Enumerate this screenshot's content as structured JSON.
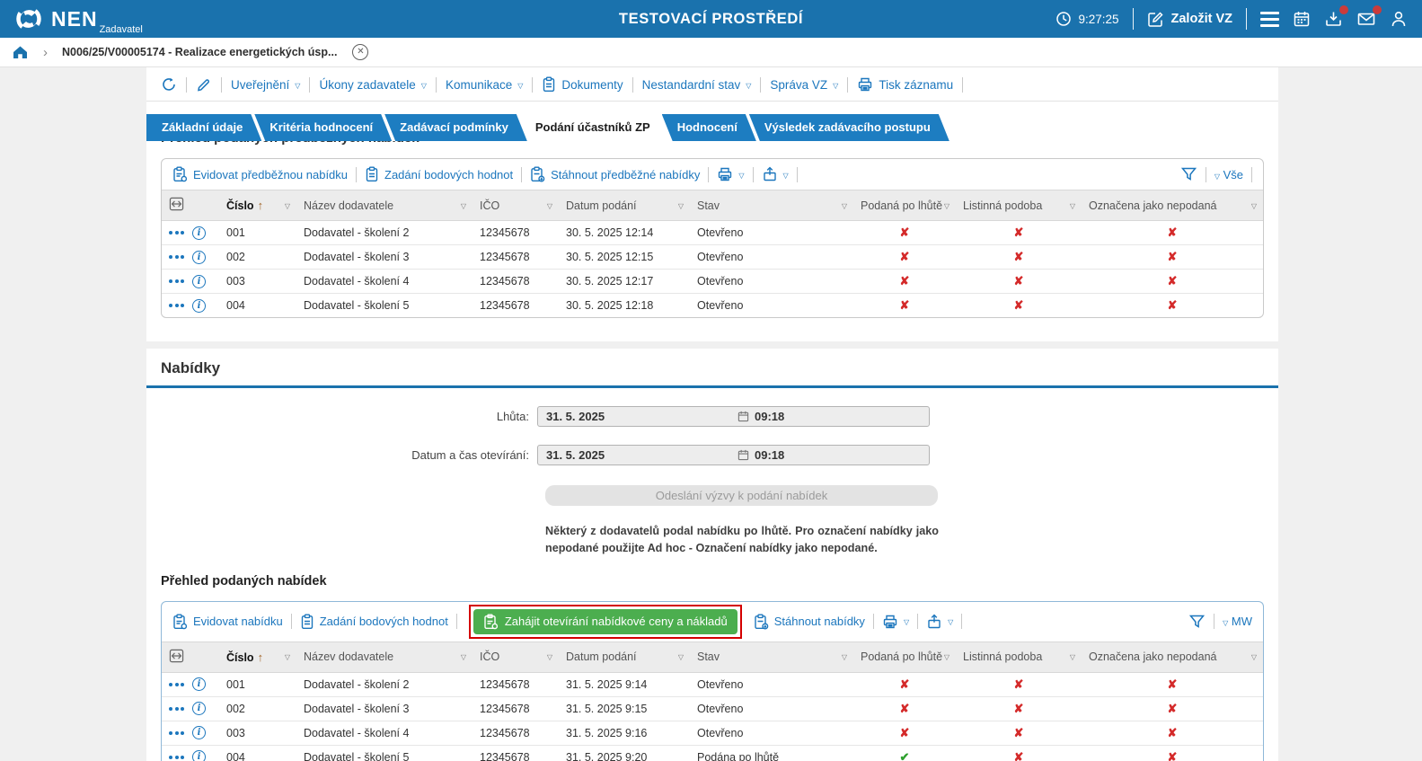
{
  "header": {
    "brand": "NEN",
    "brand_sub": "Zadavatel",
    "title": "TESTOVACÍ PROSTŘEDÍ",
    "time": "9:27:25",
    "create_button": "Založit VZ"
  },
  "breadcrumb": {
    "record": "N006/25/V00005174 - Realizace energetických úsp..."
  },
  "record_toolbar": {
    "uverejneni": "Uveřejnění",
    "ukony": "Úkony zadavatele",
    "komunikace": "Komunikace",
    "dokumenty": "Dokumenty",
    "nestandardni": "Nestandardní stav",
    "sprava": "Správa VZ",
    "tisk": "Tisk záznamu"
  },
  "tabs": [
    {
      "label": "Základní údaje",
      "active": false
    },
    {
      "label": "Kritéria hodnocení",
      "active": false
    },
    {
      "label": "Zadávací podmínky",
      "active": false
    },
    {
      "label": "Podání účastníků ZP",
      "active": true
    },
    {
      "label": "Hodnocení",
      "active": false
    },
    {
      "label": "Výsledek zadávacího postupu",
      "active": false
    }
  ],
  "section1": {
    "heading": "Přehled podaných předběžných nabídek",
    "toolbar": {
      "evidovat": "Evidovat předběžnou nabídku",
      "zadani": "Zadání bodových hodnot",
      "stahnout": "Stáhnout předběžné nabídky",
      "filter": "Vše"
    },
    "table": {
      "columns": [
        "Číslo",
        "Název dodavatele",
        "IČO",
        "Datum podání",
        "Stav",
        "Podaná po lhůtě",
        "Listinná podoba",
        "Označena jako nepodaná"
      ],
      "rows": [
        {
          "cislo": "001",
          "nazev": "Dodavatel - školení 2",
          "ico": "12345678",
          "datum": "30. 5. 2025 12:14",
          "stav": "Otevřeno",
          "podana_po_lhute": false,
          "listinna_podoba": false,
          "oznacena_nepodana": false
        },
        {
          "cislo": "002",
          "nazev": "Dodavatel - školení 3",
          "ico": "12345678",
          "datum": "30. 5. 2025 12:15",
          "stav": "Otevřeno",
          "podana_po_lhute": false,
          "listinna_podoba": false,
          "oznacena_nepodana": false
        },
        {
          "cislo": "003",
          "nazev": "Dodavatel - školení 4",
          "ico": "12345678",
          "datum": "30. 5. 2025 12:17",
          "stav": "Otevřeno",
          "podana_po_lhute": false,
          "listinna_podoba": false,
          "oznacena_nepodana": false
        },
        {
          "cislo": "004",
          "nazev": "Dodavatel - školení 5",
          "ico": "12345678",
          "datum": "30. 5. 2025 12:18",
          "stav": "Otevřeno",
          "podana_po_lhute": false,
          "listinna_podoba": false,
          "oznacena_nepodana": false
        }
      ]
    }
  },
  "offers": {
    "heading": "Nabídky",
    "fields": [
      {
        "label": "Lhůta:",
        "date": "31. 5. 2025",
        "time": "09:18"
      },
      {
        "label": "Datum a čas otevírání:",
        "date": "31. 5. 2025",
        "time": "09:18"
      }
    ],
    "disabled_button": "Odeslání výzvy k podání nabídek",
    "warning": "Některý z dodavatelů podal nabídku po lhůtě. Pro označení nabídky jako nepodané použijte Ad hoc - Označení nabídky jako nepodané.",
    "subheading": "Přehled podaných nabídek",
    "toolbar": {
      "evidovat": "Evidovat nabídku",
      "zadani": "Zadání bodových hodnot",
      "zahajit": "Zahájit otevírání nabídkové ceny a nákladů",
      "stahnout": "Stáhnout nabídky",
      "filter": "MW"
    },
    "table": {
      "columns": [
        "Číslo",
        "Název dodavatele",
        "IČO",
        "Datum podání",
        "Stav",
        "Podaná po lhůtě",
        "Listinná podoba",
        "Označena jako nepodaná"
      ],
      "rows": [
        {
          "cislo": "001",
          "nazev": "Dodavatel - školení 2",
          "ico": "12345678",
          "datum": "31. 5. 2025 9:14",
          "stav": "Otevřeno",
          "podana_po_lhute": false,
          "listinna_podoba": false,
          "oznacena_nepodana": false
        },
        {
          "cislo": "002",
          "nazev": "Dodavatel - školení 3",
          "ico": "12345678",
          "datum": "31. 5. 2025 9:15",
          "stav": "Otevřeno",
          "podana_po_lhute": false,
          "listinna_podoba": false,
          "oznacena_nepodana": false
        },
        {
          "cislo": "003",
          "nazev": "Dodavatel - školení 4",
          "ico": "12345678",
          "datum": "31. 5. 2025 9:16",
          "stav": "Otevřeno",
          "podana_po_lhute": false,
          "listinna_podoba": false,
          "oznacena_nepodana": false
        },
        {
          "cislo": "004",
          "nazev": "Dodavatel - školení 5",
          "ico": "12345678",
          "datum": "31. 5. 2025 9:20",
          "stav": "Podána po lhůtě",
          "podana_po_lhute": true,
          "listinna_podoba": false,
          "oznacena_nepodana": false
        }
      ]
    }
  },
  "colors": {
    "header_blue": "#1a72ad",
    "tab_blue": "#1d7dc1",
    "link_blue": "#1b76bd",
    "accent_green": "#4cae4f",
    "cross_red": "#d42a2a",
    "check_green": "#2fa12f",
    "highlight_outline_red": "#d40000"
  }
}
